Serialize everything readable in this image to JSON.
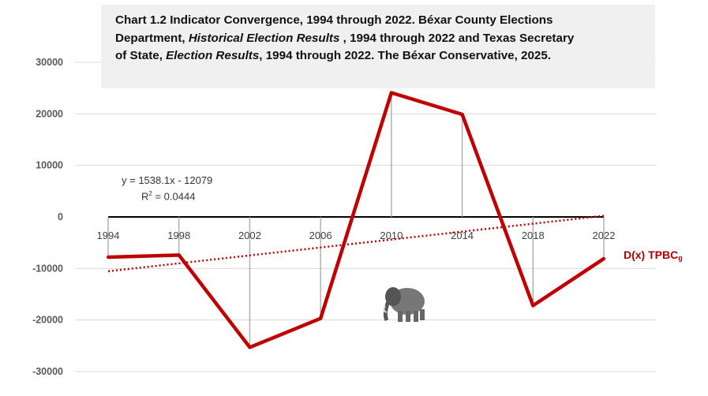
{
  "chart_data": {
    "type": "line",
    "title": {
      "line1": "Chart 1.2 Indicator Convergence, 1994 through 2022. Béxar County Elections",
      "line2_a": "Department, ",
      "line2_b": "Historical Election Results",
      "line2_c": " , 1994 through 2022 and Texas Secretary",
      "line3_a": "of State, ",
      "line3_b": "Election Results",
      "line3_c": ", 1994 through 2022. The Béxar Conservative, 2025."
    },
    "x": [
      "1994",
      "1998",
      "2002",
      "2006",
      "2010",
      "2014",
      "2018",
      "2022"
    ],
    "yticks": [
      "30000",
      "20000",
      "10000",
      "0",
      "-10000",
      "-20000",
      "-30000"
    ],
    "ylim": [
      -30000,
      30000
    ],
    "series": [
      {
        "name": "D(x) TPBC",
        "subscript": "g",
        "color": "#c00000",
        "values": [
          -7800,
          -7400,
          -25300,
          -19700,
          24100,
          19900,
          -17200,
          -8100
        ]
      }
    ],
    "trendline": {
      "equation": "y = 1538.1x - 12079",
      "r2_prefix": "R",
      "r2_sup": "2",
      "r2_value": " = 0.0444",
      "slope": 1538.1,
      "intercept": -12079,
      "color": "#c00000"
    },
    "colors": {
      "grid": "#d9d9d9",
      "axis": "#000000",
      "drop_lines": "#a6a6a6"
    }
  },
  "decor": {
    "image": "elephant-image"
  }
}
